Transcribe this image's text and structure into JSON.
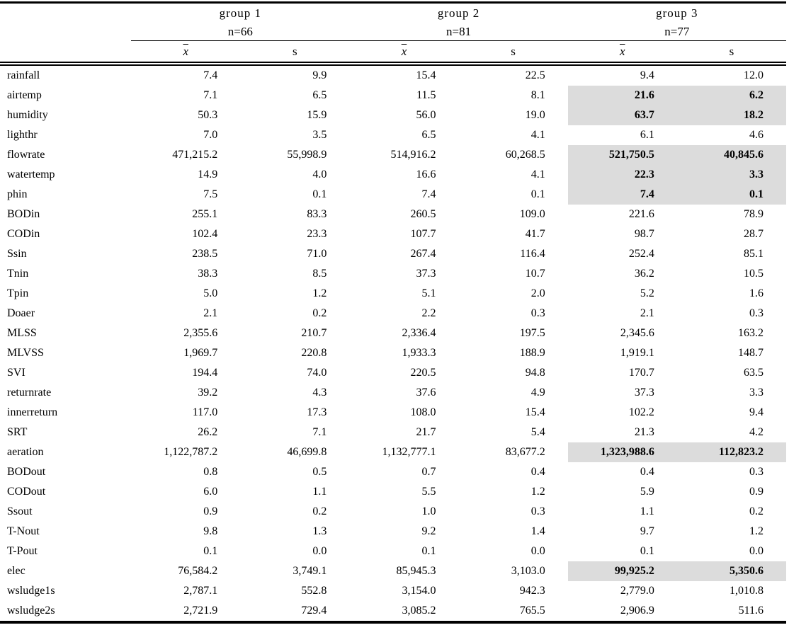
{
  "colors": {
    "highlight_bg": "#dcdcdc",
    "text": "#000000",
    "background": "#ffffff"
  },
  "table": {
    "mean_symbol": "x",
    "sd_symbol": "s",
    "groups": [
      {
        "label": "group 1",
        "n": "n=66"
      },
      {
        "label": "group 2",
        "n": "n=81"
      },
      {
        "label": "group 3",
        "n": "n=77"
      }
    ],
    "rows": [
      {
        "name": "rainfall",
        "values": [
          "7.4",
          "9.9",
          "15.4",
          "22.5",
          "9.4",
          "12.0"
        ],
        "highlight_g3": false
      },
      {
        "name": "airtemp",
        "values": [
          "7.1",
          "6.5",
          "11.5",
          "8.1",
          "21.6",
          "6.2"
        ],
        "highlight_g3": true
      },
      {
        "name": "humidity",
        "values": [
          "50.3",
          "15.9",
          "56.0",
          "19.0",
          "63.7",
          "18.2"
        ],
        "highlight_g3": true
      },
      {
        "name": "lighthr",
        "values": [
          "7.0",
          "3.5",
          "6.5",
          "4.1",
          "6.1",
          "4.6"
        ],
        "highlight_g3": false
      },
      {
        "name": "flowrate",
        "values": [
          "471,215.2",
          "55,998.9",
          "514,916.2",
          "60,268.5",
          "521,750.5",
          "40,845.6"
        ],
        "highlight_g3": true
      },
      {
        "name": "watertemp",
        "values": [
          "14.9",
          "4.0",
          "16.6",
          "4.1",
          "22.3",
          "3.3"
        ],
        "highlight_g3": true
      },
      {
        "name": "phin",
        "values": [
          "7.5",
          "0.1",
          "7.4",
          "0.1",
          "7.4",
          "0.1"
        ],
        "highlight_g3": true
      },
      {
        "name": "BODin",
        "values": [
          "255.1",
          "83.3",
          "260.5",
          "109.0",
          "221.6",
          "78.9"
        ],
        "highlight_g3": false
      },
      {
        "name": "CODin",
        "values": [
          "102.4",
          "23.3",
          "107.7",
          "41.7",
          "98.7",
          "28.7"
        ],
        "highlight_g3": false
      },
      {
        "name": "Ssin",
        "values": [
          "238.5",
          "71.0",
          "267.4",
          "116.4",
          "252.4",
          "85.1"
        ],
        "highlight_g3": false
      },
      {
        "name": "Tnin",
        "values": [
          "38.3",
          "8.5",
          "37.3",
          "10.7",
          "36.2",
          "10.5"
        ],
        "highlight_g3": false
      },
      {
        "name": "Tpin",
        "values": [
          "5.0",
          "1.2",
          "5.1",
          "2.0",
          "5.2",
          "1.6"
        ],
        "highlight_g3": false
      },
      {
        "name": "Doaer",
        "values": [
          "2.1",
          "0.2",
          "2.2",
          "0.3",
          "2.1",
          "0.3"
        ],
        "highlight_g3": false
      },
      {
        "name": "MLSS",
        "values": [
          "2,355.6",
          "210.7",
          "2,336.4",
          "197.5",
          "2,345.6",
          "163.2"
        ],
        "highlight_g3": false
      },
      {
        "name": "MLVSS",
        "values": [
          "1,969.7",
          "220.8",
          "1,933.3",
          "188.9",
          "1,919.1",
          "148.7"
        ],
        "highlight_g3": false
      },
      {
        "name": "SVI",
        "values": [
          "194.4",
          "74.0",
          "220.5",
          "94.8",
          "170.7",
          "63.5"
        ],
        "highlight_g3": false
      },
      {
        "name": "returnrate",
        "values": [
          "39.2",
          "4.3",
          "37.6",
          "4.9",
          "37.3",
          "3.3"
        ],
        "highlight_g3": false
      },
      {
        "name": "innerreturn",
        "values": [
          "117.0",
          "17.3",
          "108.0",
          "15.4",
          "102.2",
          "9.4"
        ],
        "highlight_g3": false
      },
      {
        "name": "SRT",
        "values": [
          "26.2",
          "7.1",
          "21.7",
          "5.4",
          "21.3",
          "4.2"
        ],
        "highlight_g3": false
      },
      {
        "name": "aeration",
        "values": [
          "1,122,787.2",
          "46,699.8",
          "1,132,777.1",
          "83,677.2",
          "1,323,988.6",
          "112,823.2"
        ],
        "highlight_g3": true
      },
      {
        "name": "BODout",
        "values": [
          "0.8",
          "0.5",
          "0.7",
          "0.4",
          "0.4",
          "0.3"
        ],
        "highlight_g3": false
      },
      {
        "name": "CODout",
        "values": [
          "6.0",
          "1.1",
          "5.5",
          "1.2",
          "5.9",
          "0.9"
        ],
        "highlight_g3": false
      },
      {
        "name": "Ssout",
        "values": [
          "0.9",
          "0.2",
          "1.0",
          "0.3",
          "1.1",
          "0.2"
        ],
        "highlight_g3": false
      },
      {
        "name": "T-Nout",
        "values": [
          "9.8",
          "1.3",
          "9.2",
          "1.4",
          "9.7",
          "1.2"
        ],
        "highlight_g3": false
      },
      {
        "name": "T-Pout",
        "values": [
          "0.1",
          "0.0",
          "0.1",
          "0.0",
          "0.1",
          "0.0"
        ],
        "highlight_g3": false
      },
      {
        "name": "elec",
        "values": [
          "76,584.2",
          "3,749.1",
          "85,945.3",
          "3,103.0",
          "99,925.2",
          "5,350.6"
        ],
        "highlight_g3": true
      },
      {
        "name": "wsludge1s",
        "values": [
          "2,787.1",
          "552.8",
          "3,154.0",
          "942.3",
          "2,779.0",
          "1,010.8"
        ],
        "highlight_g3": false
      },
      {
        "name": "wsludge2s",
        "values": [
          "2,721.9",
          "729.4",
          "3,085.2",
          "765.5",
          "2,906.9",
          "511.6"
        ],
        "highlight_g3": false
      }
    ]
  }
}
